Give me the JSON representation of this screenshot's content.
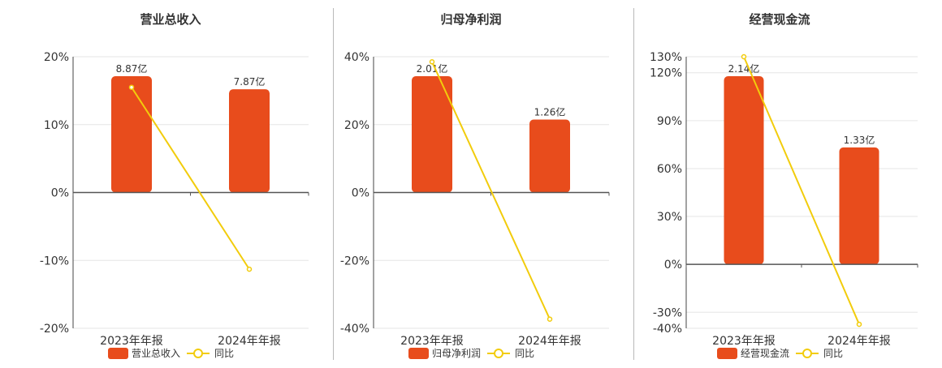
{
  "colors": {
    "bar": "#e84c1c",
    "line": "#f2cc0c",
    "axis": "#444444",
    "grid": "#e6e6e6",
    "text": "#333333"
  },
  "chart_data": [
    {
      "type": "bar",
      "title": "营业总收入",
      "categories": [
        "2023年年报",
        "2024年年报"
      ],
      "y_ticks": [
        "20%",
        "10%",
        "0%",
        "-10%",
        "-20%"
      ],
      "ylim": [
        -20,
        20
      ],
      "series": [
        {
          "name": "营业总收入",
          "kind": "bar",
          "value_labels": [
            "8.87亿",
            "7.87亿"
          ],
          "values": [
            8.87,
            7.87
          ]
        },
        {
          "name": "同比",
          "kind": "line",
          "values": [
            15.5,
            -11.3
          ]
        }
      ]
    },
    {
      "type": "bar",
      "title": "归母净利润",
      "categories": [
        "2023年年报",
        "2024年年报"
      ],
      "y_ticks": [
        "40%",
        "20%",
        "0%",
        "-20%",
        "-40%"
      ],
      "ylim": [
        -40,
        40
      ],
      "series": [
        {
          "name": "归母净利润",
          "kind": "bar",
          "value_labels": [
            "2.01亿",
            "1.26亿"
          ],
          "values": [
            2.01,
            1.26
          ]
        },
        {
          "name": "同比",
          "kind": "line",
          "values": [
            38.5,
            -37.3
          ]
        }
      ]
    },
    {
      "type": "bar",
      "title": "经营现金流",
      "categories": [
        "2023年年报",
        "2024年年报"
      ],
      "y_ticks": [
        "130%",
        "120%",
        "90%",
        "60%",
        "30%",
        "0%",
        "-30%",
        "-40%"
      ],
      "ylim": [
        -40,
        130
      ],
      "series": [
        {
          "name": "经营现金流",
          "kind": "bar",
          "value_labels": [
            "2.14亿",
            "1.33亿"
          ],
          "values": [
            2.14,
            1.33
          ]
        },
        {
          "name": "同比",
          "kind": "line",
          "values": [
            130,
            -37.5
          ]
        }
      ]
    }
  ]
}
